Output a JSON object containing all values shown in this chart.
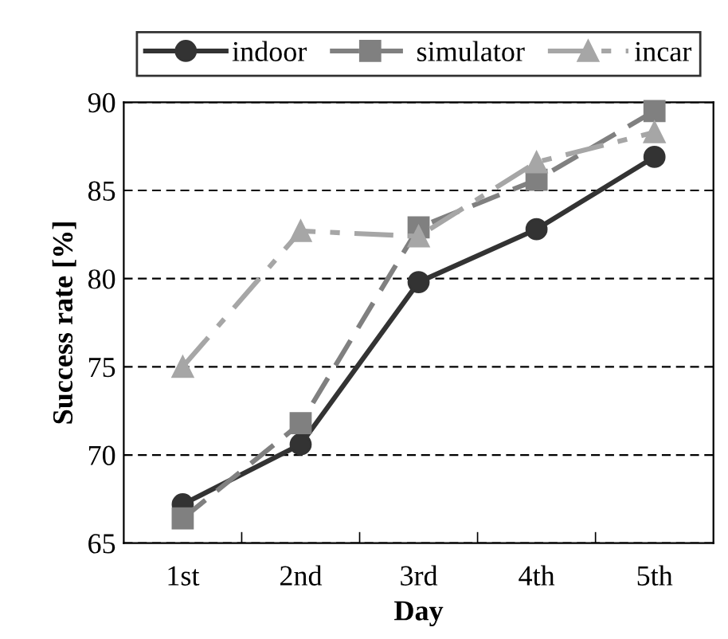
{
  "chart_data": {
    "type": "line",
    "xlabel": "Day",
    "ylabel": "Success rate [%]",
    "categories": [
      "1st",
      "2nd",
      "3rd",
      "4th",
      "5th"
    ],
    "series": [
      {
        "name": "indoor",
        "color": "#333333",
        "values": [
          67.2,
          70.6,
          79.8,
          82.8,
          86.9
        ],
        "marker": "circle",
        "line_style": "solid"
      },
      {
        "name": "simulator",
        "color": "#808080",
        "values": [
          66.4,
          71.8,
          82.9,
          85.6,
          89.5
        ],
        "marker": "square",
        "line_style": "dashed"
      },
      {
        "name": "incar",
        "color": "#a6a6a6",
        "values": [
          75.0,
          82.7,
          82.4,
          86.6,
          88.3
        ],
        "marker": "triangle",
        "line_style": "dashdot"
      }
    ],
    "ylim": [
      65,
      90
    ],
    "yticks": [
      65,
      70,
      75,
      80,
      85,
      90
    ],
    "grid": "y",
    "legend": "top"
  }
}
